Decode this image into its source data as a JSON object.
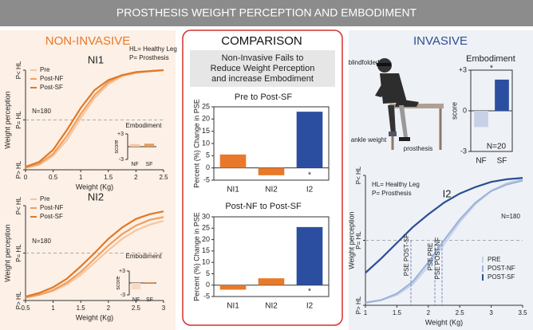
{
  "header": {
    "title": "PROSTHESIS WEIGHT PERCEPTION AND EMBODIMENT"
  },
  "sections": {
    "non_invasive": "NON-INVASIVE",
    "comparison": "COMPARISON",
    "invasive": "INVASIVE"
  },
  "comparison_subtitle": [
    "Non-Invasive Fails to",
    "Reduce Weight Perception",
    "and increase Embodiment"
  ],
  "photo": {
    "labels": [
      "blindfolded",
      "ankle weight",
      "prosthesis"
    ]
  },
  "chart_data": [
    {
      "type": "line",
      "title": "NI1",
      "xlabel": "Weight (Kg)",
      "ylabel": "Weight perception",
      "x": [
        0,
        0.25,
        0.5,
        0.75,
        1,
        1.25,
        1.5,
        1.75,
        2,
        2.25,
        2.5
      ],
      "series": [
        {
          "name": "Pre",
          "color": "#f5c6a0",
          "values": [
            0.02,
            0.05,
            0.14,
            0.3,
            0.52,
            0.72,
            0.86,
            0.94,
            0.97,
            0.99,
            1.0
          ]
        },
        {
          "name": "Post-NF",
          "color": "#eea060",
          "values": [
            0.02,
            0.06,
            0.16,
            0.34,
            0.56,
            0.75,
            0.88,
            0.95,
            0.98,
            0.99,
            1.0
          ]
        },
        {
          "name": "Post-SF",
          "color": "#e07826",
          "values": [
            0.03,
            0.08,
            0.2,
            0.4,
            0.62,
            0.8,
            0.9,
            0.95,
            0.98,
            0.99,
            1.0
          ]
        }
      ],
      "xlim": [
        0,
        2.5
      ],
      "xticks": [
        0,
        0.5,
        1,
        1.5,
        2,
        2.5
      ],
      "ylim": [
        0,
        1
      ],
      "yticks": [
        {
          "value": 0,
          "label": "P> HL"
        },
        {
          "value": 0.5,
          "label": "P= HL"
        },
        {
          "value": 1,
          "label": "P< HL"
        }
      ],
      "reference_y": 0.5,
      "annotations": [
        "N=180"
      ],
      "notes": [
        "HL= Healthy Leg",
        "P= Prosthesis"
      ]
    },
    {
      "type": "bar",
      "title": "Embodiment",
      "ylabel": "score",
      "categories": [
        "NF",
        "SF"
      ],
      "values": [
        0.6,
        0.7
      ],
      "colors": [
        "#f5c6a0",
        "#e59a5c"
      ],
      "ylim": [
        -3,
        3
      ],
      "yticks": [
        {
          "value": 3,
          "label": "+3"
        },
        -3
      ]
    },
    {
      "type": "line",
      "title": "NI2",
      "xlabel": "Weight (Kg)",
      "ylabel": "Weight perception",
      "x": [
        0.5,
        0.75,
        1,
        1.25,
        1.5,
        1.75,
        2,
        2.25,
        2.5,
        2.75,
        3
      ],
      "series": [
        {
          "name": "Pre",
          "color": "#f5c6a0",
          "values": [
            0.03,
            0.06,
            0.1,
            0.17,
            0.27,
            0.4,
            0.53,
            0.65,
            0.74,
            0.8,
            0.84
          ]
        },
        {
          "name": "Post-NF",
          "color": "#eea060",
          "values": [
            0.03,
            0.06,
            0.11,
            0.19,
            0.3,
            0.44,
            0.58,
            0.7,
            0.79,
            0.85,
            0.88
          ]
        },
        {
          "name": "Post-SF",
          "color": "#e07826",
          "values": [
            0.04,
            0.08,
            0.14,
            0.23,
            0.36,
            0.5,
            0.65,
            0.77,
            0.86,
            0.91,
            0.94
          ]
        }
      ],
      "xlim": [
        0.5,
        3
      ],
      "xticks": [
        0.5,
        1,
        1.5,
        2,
        2.5,
        3
      ],
      "ylim": [
        0,
        1
      ],
      "yticks": [
        {
          "value": 0,
          "label": "P> HL"
        },
        {
          "value": 0.5,
          "label": "P= HL"
        },
        {
          "value": 1,
          "label": "P< HL"
        }
      ],
      "reference_y": 0.5,
      "annotations": [
        "N=180"
      ]
    },
    {
      "type": "bar",
      "title": "Embodiment",
      "ylabel": "score",
      "categories": [
        "NF",
        "SF"
      ],
      "values": [
        -1.6,
        0.2
      ],
      "colors": [
        "#f9d9c2",
        "#e59a5c"
      ],
      "ylim": [
        -3,
        3
      ],
      "yticks": [
        {
          "value": 3,
          "label": "+3"
        },
        -3
      ]
    },
    {
      "type": "bar",
      "title": "Pre to Post-SF",
      "ylabel": "Percent (%) Change in PSE",
      "categories": [
        "NI1",
        "NI2",
        "I2"
      ],
      "values": [
        5.5,
        -3,
        23
      ],
      "colors": [
        "#e8792b",
        "#e8792b",
        "#2b4ea0"
      ],
      "ylim": [
        -5,
        25
      ],
      "yticks": [
        -5,
        0,
        5,
        10,
        15,
        20,
        25
      ],
      "annotations": [
        "*"
      ]
    },
    {
      "type": "bar",
      "title": "Post-NF to Post-SF",
      "ylabel": "Percent (%) Change in PSE",
      "categories": [
        "NI1",
        "NI2",
        "I2"
      ],
      "values": [
        -2,
        3,
        25.5
      ],
      "colors": [
        "#e8792b",
        "#e8792b",
        "#2b4ea0"
      ],
      "ylim": [
        -5,
        30
      ],
      "yticks": [
        -5,
        0,
        5,
        10,
        15,
        20,
        25,
        30
      ],
      "annotations": [
        "*"
      ]
    },
    {
      "type": "bar",
      "title": "Embodiment",
      "ylabel": "score",
      "categories": [
        "NF",
        "SF"
      ],
      "values": [
        -1.2,
        2.3
      ],
      "colors": [
        "#c7d0e6",
        "#2b4ea0"
      ],
      "ylim": [
        -3,
        3
      ],
      "yticks": [
        {
          "value": 3,
          "label": "+3"
        },
        0,
        -3
      ],
      "annotations": [
        "N=20",
        "*"
      ]
    },
    {
      "type": "line",
      "title": "I2",
      "xlabel": "Weight (Kg)",
      "ylabel": "Weight perception",
      "x": [
        1,
        1.25,
        1.5,
        1.75,
        2,
        2.25,
        2.5,
        2.75,
        3,
        3.25,
        3.5
      ],
      "series": [
        {
          "name": "PRE",
          "color": "#c5d3ea",
          "values": [
            0.02,
            0.04,
            0.08,
            0.16,
            0.3,
            0.47,
            0.64,
            0.78,
            0.88,
            0.94,
            0.97
          ]
        },
        {
          "name": "POST-NF",
          "color": "#9db3da",
          "values": [
            0.02,
            0.04,
            0.09,
            0.18,
            0.33,
            0.5,
            0.66,
            0.79,
            0.88,
            0.93,
            0.96
          ]
        },
        {
          "name": "POST-SF",
          "color": "#2b4f93",
          "values": [
            0.25,
            0.36,
            0.48,
            0.6,
            0.7,
            0.79,
            0.86,
            0.91,
            0.95,
            0.97,
            0.98
          ]
        }
      ],
      "xlim": [
        1,
        3.5
      ],
      "xticks": [
        1,
        1.5,
        2,
        2.5,
        3,
        3.5
      ],
      "ylim": [
        0,
        1
      ],
      "yticks": [
        {
          "value": 0,
          "label": "P> HL"
        },
        {
          "value": 0.5,
          "label": "P= HL"
        },
        {
          "value": 1,
          "label": "P< HL"
        }
      ],
      "reference_y": 0.5,
      "annotations": [
        "N=180"
      ],
      "notes": [
        "HL= Healthy Leg",
        "P= Prosthesis"
      ],
      "pse_labels": [
        "PSE POST-SF",
        "PSE PRE",
        "PSE POST-NF"
      ]
    }
  ]
}
